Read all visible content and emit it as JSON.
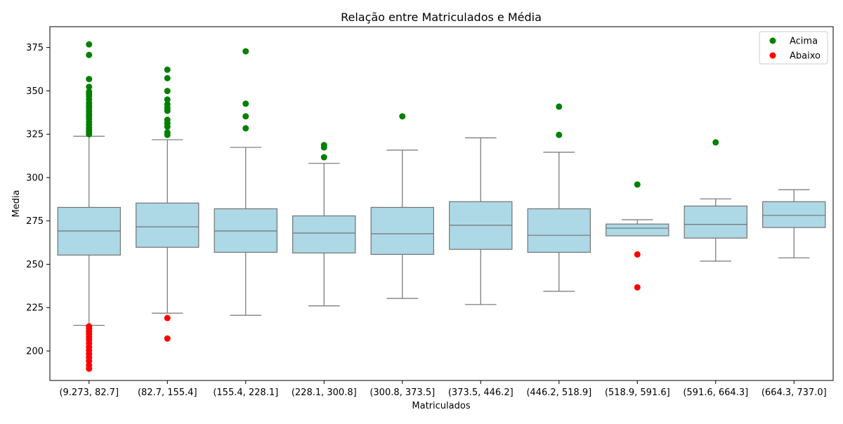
{
  "chart_data": {
    "type": "box",
    "title": "Relação entre Matriculados e Média",
    "xlabel": "Matriculados",
    "ylabel": "Media",
    "ylim": [
      183,
      387
    ],
    "yticks": [
      200,
      225,
      250,
      275,
      300,
      325,
      350,
      375
    ],
    "categories": [
      "(9.273, 82.7]",
      "(82.7, 155.4]",
      "(155.4, 228.1]",
      "(228.1, 300.8]",
      "(300.8, 373.5]",
      "(373.5, 446.2]",
      "(446.2, 518.9]",
      "(518.9, 591.6]",
      "(591.6, 664.3]",
      "(664.3, 737.0]"
    ],
    "box_color": "#add8e6",
    "line_color": "#737373",
    "boxes": [
      {
        "whislo": 214.8,
        "q1": 255.3,
        "med": 269.2,
        "q3": 282.8,
        "whishi": 323.8
      },
      {
        "whislo": 221.8,
        "q1": 259.8,
        "med": 271.6,
        "q3": 285.3,
        "whishi": 321.8
      },
      {
        "whislo": 220.6,
        "q1": 256.9,
        "med": 269.2,
        "q3": 282.0,
        "whishi": 317.4
      },
      {
        "whislo": 226.0,
        "q1": 256.5,
        "med": 268.0,
        "q3": 277.9,
        "whishi": 308.2
      },
      {
        "whislo": 230.3,
        "q1": 255.7,
        "med": 267.6,
        "q3": 282.8,
        "whishi": 315.8
      },
      {
        "whislo": 226.8,
        "q1": 258.6,
        "med": 272.5,
        "q3": 286.1,
        "whishi": 322.9
      },
      {
        "whislo": 234.4,
        "q1": 256.9,
        "med": 266.7,
        "q3": 282.0,
        "whishi": 314.6
      },
      {
        "whislo": 266.4,
        "q1": 266.4,
        "med": 270.8,
        "q3": 273.2,
        "whishi": 275.7
      },
      {
        "whislo": 251.8,
        "q1": 265.1,
        "med": 273.0,
        "q3": 283.6,
        "whishi": 287.7
      },
      {
        "whislo": 253.7,
        "q1": 271.2,
        "med": 278.2,
        "q3": 286.1,
        "whishi": 293.0
      }
    ],
    "legend_position": "top-right",
    "series": [
      {
        "name": "Acima",
        "color": "#008000",
        "points": [
          [
            0,
            376.8
          ],
          [
            0,
            370.7
          ],
          [
            0,
            356.8
          ],
          [
            0,
            352.3
          ],
          [
            0,
            349.5
          ],
          [
            0,
            348.2
          ],
          [
            0,
            347.0
          ],
          [
            0,
            345.0
          ],
          [
            0,
            343.0
          ],
          [
            0,
            341.5
          ],
          [
            0,
            340.2
          ],
          [
            0,
            338.5
          ],
          [
            0,
            336.8
          ],
          [
            0,
            335.5
          ],
          [
            0,
            334.0
          ],
          [
            0,
            332.2
          ],
          [
            0,
            330.5
          ],
          [
            0,
            328.8
          ],
          [
            0,
            327.5
          ],
          [
            0,
            326.2
          ],
          [
            0,
            325.0
          ],
          [
            1,
            362.2
          ],
          [
            1,
            357.3
          ],
          [
            1,
            349.9
          ],
          [
            1,
            345.0
          ],
          [
            1,
            342.2
          ],
          [
            1,
            340.2
          ],
          [
            1,
            338.5
          ],
          [
            1,
            333.3
          ],
          [
            1,
            331.3
          ],
          [
            1,
            329.3
          ],
          [
            1,
            326.0
          ],
          [
            1,
            324.6
          ],
          [
            2,
            372.8
          ],
          [
            2,
            342.6
          ],
          [
            2,
            335.3
          ],
          [
            2,
            328.4
          ],
          [
            3,
            318.7
          ],
          [
            3,
            317.4
          ],
          [
            3,
            311.7
          ],
          [
            4,
            335.3
          ],
          [
            6,
            340.9
          ],
          [
            6,
            324.6
          ],
          [
            7,
            296.0
          ],
          [
            8,
            320.3
          ]
        ]
      },
      {
        "name": "Abaixo",
        "color": "#ff0000",
        "points": [
          [
            0,
            214.2
          ],
          [
            0,
            212.9
          ],
          [
            0,
            211.3
          ],
          [
            0,
            209.7
          ],
          [
            0,
            208.0
          ],
          [
            0,
            206.4
          ],
          [
            0,
            204.4
          ],
          [
            0,
            202.3
          ],
          [
            0,
            200.3
          ],
          [
            0,
            198.3
          ],
          [
            0,
            196.2
          ],
          [
            0,
            194.2
          ],
          [
            0,
            191.8
          ],
          [
            0,
            189.8
          ],
          [
            1,
            219.0
          ],
          [
            1,
            207.2
          ],
          [
            7,
            255.7
          ],
          [
            7,
            236.7
          ]
        ]
      }
    ]
  }
}
